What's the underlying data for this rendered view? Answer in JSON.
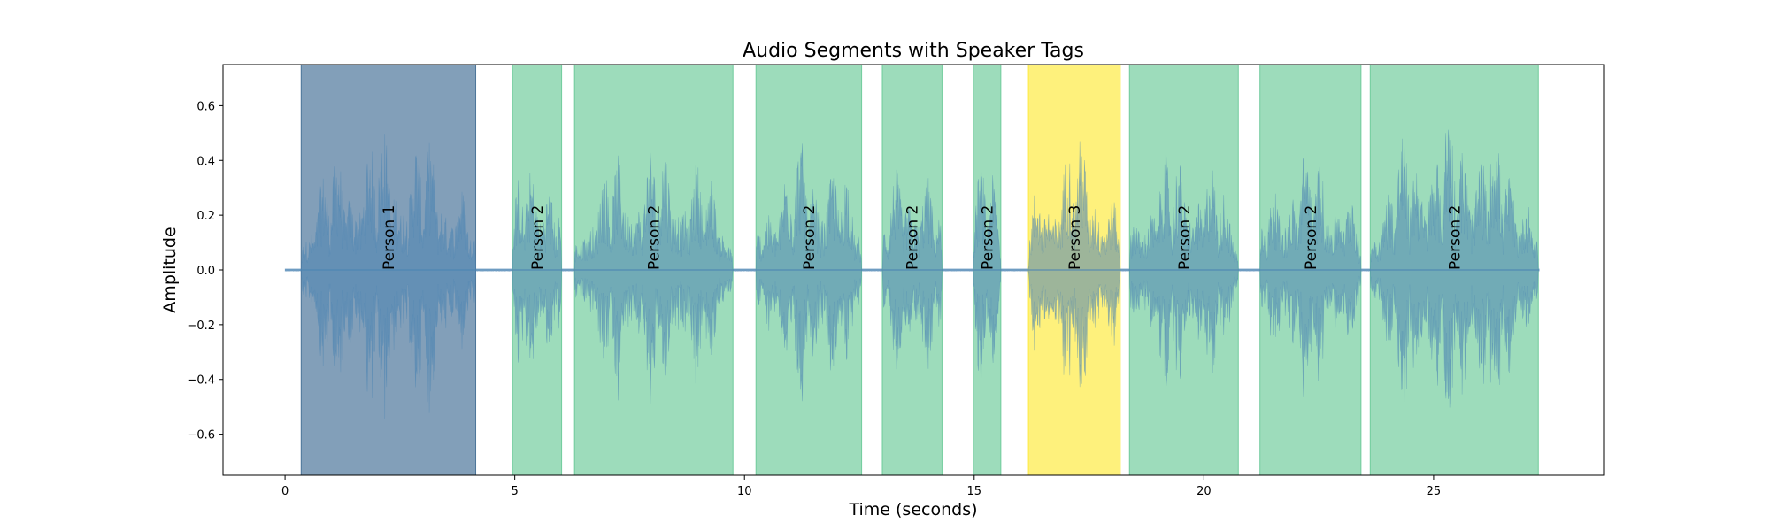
{
  "chart_data": {
    "type": "area",
    "title": "Audio Segments with Speaker Tags",
    "xlabel": "Time (seconds)",
    "ylabel": "Amplitude",
    "xlim": [
      -1.35,
      28.7
    ],
    "ylim": [
      -0.75,
      0.75
    ],
    "xticks": [
      0,
      5,
      10,
      15,
      20,
      25
    ],
    "yticks": [
      0.6,
      0.4,
      0.2,
      0.0,
      -0.2,
      -0.4,
      -0.6
    ],
    "ytick_labels": [
      "0.6",
      "0.4",
      "0.2",
      "0.0",
      "−0.2",
      "−0.4",
      "−0.6"
    ],
    "grid": false,
    "waveform": {
      "start": 0.0,
      "end": 27.3,
      "color": "#4c84b3"
    },
    "segments": [
      {
        "speaker": "Person 1",
        "start": 0.35,
        "end": 4.15,
        "color": "#2f5f8a",
        "peak": 0.56
      },
      {
        "speaker": "Person 2",
        "start": 4.95,
        "end": 6.02,
        "color": "#5cc48e",
        "peak": 0.5
      },
      {
        "speaker": "Person 2",
        "start": 6.3,
        "end": 9.75,
        "color": "#5cc48e",
        "peak": 0.5
      },
      {
        "speaker": "Person 2",
        "start": 10.25,
        "end": 12.55,
        "color": "#5cc48e",
        "peak": 0.5
      },
      {
        "speaker": "Person 2",
        "start": 13.0,
        "end": 14.3,
        "color": "#5cc48e",
        "peak": 0.45
      },
      {
        "speaker": "Person 2",
        "start": 14.98,
        "end": 15.58,
        "color": "#5cc48e",
        "peak": 0.45
      },
      {
        "speaker": "Person 3",
        "start": 16.18,
        "end": 18.18,
        "color": "#fde725",
        "peak": 0.52
      },
      {
        "speaker": "Person 2",
        "start": 18.38,
        "end": 20.75,
        "color": "#5cc48e",
        "peak": 0.47
      },
      {
        "speaker": "Person 2",
        "start": 21.22,
        "end": 23.42,
        "color": "#5cc48e",
        "peak": 0.48
      },
      {
        "speaker": "Person 2",
        "start": 23.62,
        "end": 27.28,
        "color": "#5cc48e",
        "peak": 0.62
      }
    ]
  }
}
